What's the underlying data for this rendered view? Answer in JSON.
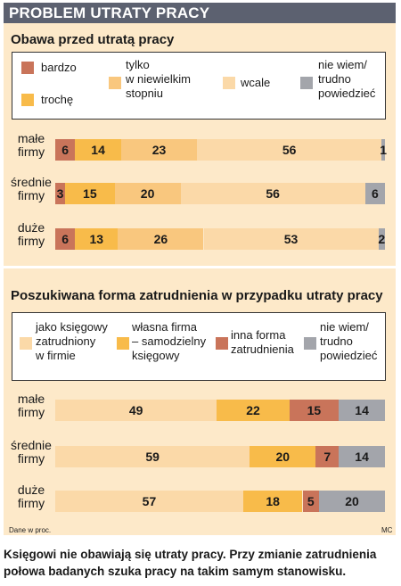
{
  "title": "PROBLEM UTRATY PRACY",
  "colors": {
    "header_bg": "#5c6170",
    "panel_bg": "#fde9c9",
    "rust": "#c9745a",
    "orange": "#f8bb4a",
    "light_orange": "#f9c77e",
    "beige": "#fbd9a8",
    "grey": "#a3a5ab"
  },
  "source_note": "Dane w proc.",
  "author": "MC",
  "caption_line1": "Księgowi nie obawiają się utraty pracy. Przy zmianie zatrudnienia",
  "caption_line2": "połowa badanych szuka pracy na takim samym stanowisku.",
  "chart_data": [
    {
      "type": "bar",
      "orientation": "horizontal",
      "stacked": true,
      "title": "Obawa przed utratą pracy",
      "categories": [
        "małe firmy",
        "średnie firmy",
        "duże firmy"
      ],
      "legend_lines": [
        [
          "bardzo"
        ],
        [
          "trochę"
        ],
        [
          "tylko",
          "w niewielkim",
          "stopniu"
        ],
        [
          "wcale"
        ],
        [
          "nie wiem/",
          "trudno",
          "powiedzieć"
        ]
      ],
      "series": [
        {
          "name": "bardzo",
          "color": "#c9745a",
          "values": [
            6,
            3,
            6
          ]
        },
        {
          "name": "trochę",
          "color": "#f8bb4a",
          "values": [
            14,
            15,
            13
          ]
        },
        {
          "name": "tylko w niewielkim stopniu",
          "color": "#f9c77e",
          "values": [
            23,
            20,
            26
          ]
        },
        {
          "name": "wcale",
          "color": "#fbd9a8",
          "values": [
            56,
            56,
            53
          ]
        },
        {
          "name": "nie wiem/ trudno powiedzieć",
          "color": "#a3a5ab",
          "values": [
            1,
            6,
            2
          ]
        }
      ],
      "xlim": [
        0,
        100
      ]
    },
    {
      "type": "bar",
      "orientation": "horizontal",
      "stacked": true,
      "title": "Poszukiwana forma zatrudnienia w przypadku utraty pracy",
      "categories": [
        "małe firmy",
        "średnie firmy",
        "duże firmy"
      ],
      "legend_lines": [
        [
          "jako księgowy",
          "zatrudniony",
          "w firmie"
        ],
        [
          "własna firma",
          "– samodzielny",
          "księgowy"
        ],
        [
          "inna forma",
          "zatrudnienia"
        ],
        [
          "nie wiem/",
          "trudno",
          "powiedzieć"
        ]
      ],
      "series": [
        {
          "name": "jako księgowy zatrudniony w firmie",
          "color": "#fbd9a8",
          "values": [
            49,
            59,
            57
          ]
        },
        {
          "name": "własna firma – samodzielny księgowy",
          "color": "#f8bb4a",
          "values": [
            22,
            20,
            18
          ]
        },
        {
          "name": "inna forma zatrudnienia",
          "color": "#c9745a",
          "values": [
            15,
            7,
            5
          ]
        },
        {
          "name": "nie wiem/ trudno powiedzieć",
          "color": "#a3a5ab",
          "values": [
            14,
            14,
            20
          ]
        }
      ],
      "xlim": [
        0,
        100
      ]
    }
  ]
}
